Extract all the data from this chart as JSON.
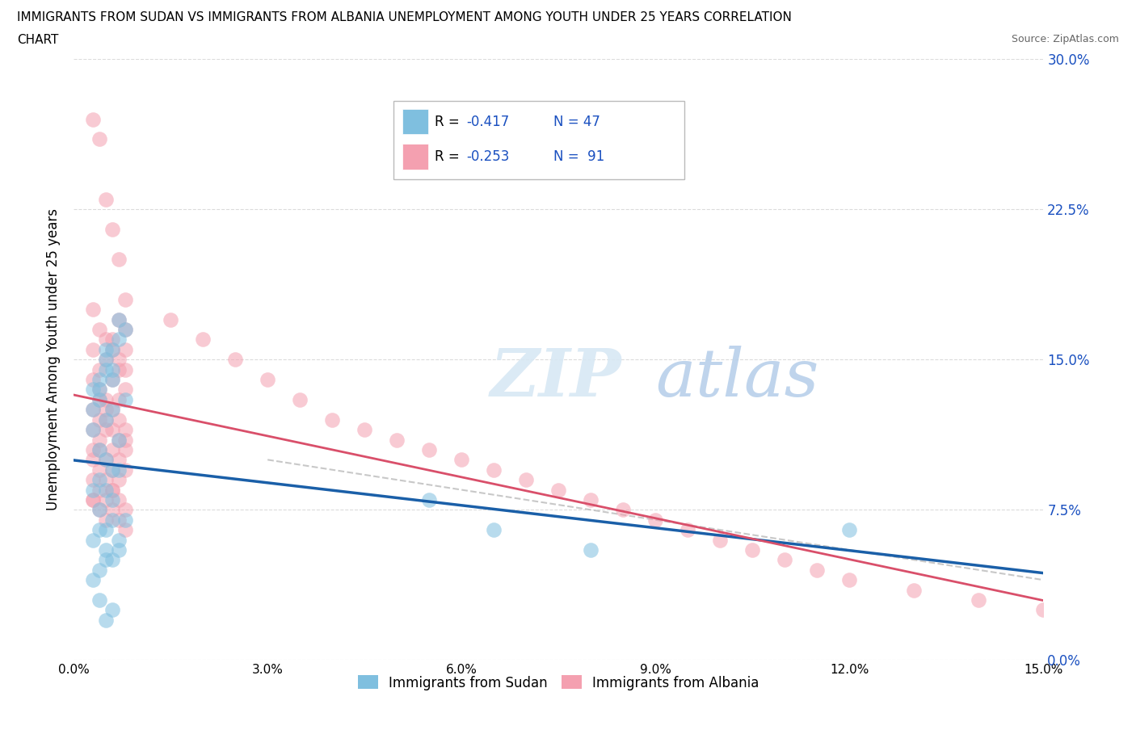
{
  "title_line1": "IMMIGRANTS FROM SUDAN VS IMMIGRANTS FROM ALBANIA UNEMPLOYMENT AMONG YOUTH UNDER 25 YEARS CORRELATION",
  "title_line2": "CHART",
  "source": "Source: ZipAtlas.com",
  "ylabel": "Unemployment Among Youth under 25 years",
  "xlim": [
    0.0,
    0.15
  ],
  "ylim": [
    0.0,
    0.3
  ],
  "xticks": [
    0.0,
    0.03,
    0.06,
    0.09,
    0.12,
    0.15
  ],
  "yticks": [
    0.0,
    0.075,
    0.15,
    0.225,
    0.3
  ],
  "ytick_labels": [
    "0.0%",
    "7.5%",
    "15.0%",
    "22.5%",
    "30.0%"
  ],
  "xtick_labels": [
    "0.0%",
    "3.0%",
    "6.0%",
    "9.0%",
    "12.0%",
    "15.0%"
  ],
  "sudan_R": -0.417,
  "sudan_N": 47,
  "albania_R": -0.253,
  "albania_N": 91,
  "sudan_color": "#7fbfdf",
  "albania_color": "#f4a0b0",
  "sudan_line_color": "#1a5fa8",
  "albania_line_color": "#d94f6a",
  "dashed_line_color": "#cccccc",
  "legend_R_color": "#1a50c0",
  "grid_color": "#cccccc",
  "sudan_x": [
    0.005,
    0.006,
    0.004,
    0.003,
    0.007,
    0.008,
    0.005,
    0.006,
    0.004,
    0.003,
    0.007,
    0.005,
    0.006,
    0.004,
    0.008,
    0.005,
    0.003,
    0.006,
    0.004,
    0.007,
    0.005,
    0.006,
    0.004,
    0.003,
    0.007,
    0.005,
    0.006,
    0.004,
    0.008,
    0.005,
    0.003,
    0.006,
    0.004,
    0.007,
    0.005,
    0.006,
    0.004,
    0.003,
    0.007,
    0.005,
    0.055,
    0.065,
    0.08,
    0.12,
    0.005,
    0.006,
    0.004
  ],
  "sudan_y": [
    0.155,
    0.145,
    0.14,
    0.135,
    0.16,
    0.165,
    0.15,
    0.14,
    0.13,
    0.125,
    0.17,
    0.145,
    0.155,
    0.135,
    0.13,
    0.12,
    0.115,
    0.125,
    0.105,
    0.11,
    0.1,
    0.095,
    0.09,
    0.085,
    0.095,
    0.085,
    0.08,
    0.075,
    0.07,
    0.065,
    0.06,
    0.07,
    0.065,
    0.06,
    0.055,
    0.05,
    0.045,
    0.04,
    0.055,
    0.05,
    0.08,
    0.065,
    0.055,
    0.065,
    0.02,
    0.025,
    0.03
  ],
  "albania_x": [
    0.003,
    0.004,
    0.005,
    0.006,
    0.007,
    0.008,
    0.003,
    0.004,
    0.005,
    0.006,
    0.007,
    0.008,
    0.003,
    0.004,
    0.005,
    0.006,
    0.007,
    0.008,
    0.003,
    0.004,
    0.005,
    0.006,
    0.007,
    0.008,
    0.003,
    0.004,
    0.005,
    0.006,
    0.007,
    0.008,
    0.003,
    0.004,
    0.005,
    0.006,
    0.007,
    0.008,
    0.003,
    0.004,
    0.005,
    0.006,
    0.007,
    0.008,
    0.003,
    0.004,
    0.005,
    0.006,
    0.007,
    0.008,
    0.003,
    0.004,
    0.005,
    0.006,
    0.007,
    0.008,
    0.003,
    0.004,
    0.005,
    0.006,
    0.007,
    0.008,
    0.003,
    0.004,
    0.005,
    0.006,
    0.007,
    0.008,
    0.015,
    0.02,
    0.025,
    0.03,
    0.035,
    0.04,
    0.045,
    0.05,
    0.055,
    0.06,
    0.065,
    0.07,
    0.075,
    0.08,
    0.085,
    0.09,
    0.095,
    0.1,
    0.105,
    0.11,
    0.115,
    0.12,
    0.13,
    0.14,
    0.15
  ],
  "albania_y": [
    0.175,
    0.165,
    0.16,
    0.155,
    0.17,
    0.165,
    0.155,
    0.145,
    0.15,
    0.16,
    0.145,
    0.155,
    0.14,
    0.135,
    0.13,
    0.14,
    0.15,
    0.145,
    0.125,
    0.13,
    0.12,
    0.125,
    0.13,
    0.135,
    0.115,
    0.12,
    0.125,
    0.115,
    0.12,
    0.11,
    0.105,
    0.11,
    0.115,
    0.105,
    0.11,
    0.115,
    0.1,
    0.105,
    0.1,
    0.095,
    0.1,
    0.105,
    0.09,
    0.095,
    0.09,
    0.085,
    0.09,
    0.095,
    0.08,
    0.085,
    0.08,
    0.085,
    0.08,
    0.075,
    0.08,
    0.075,
    0.07,
    0.075,
    0.07,
    0.065,
    0.27,
    0.26,
    0.23,
    0.215,
    0.2,
    0.18,
    0.17,
    0.16,
    0.15,
    0.14,
    0.13,
    0.12,
    0.115,
    0.11,
    0.105,
    0.1,
    0.095,
    0.09,
    0.085,
    0.08,
    0.075,
    0.07,
    0.065,
    0.06,
    0.055,
    0.05,
    0.045,
    0.04,
    0.035,
    0.03,
    0.025
  ]
}
